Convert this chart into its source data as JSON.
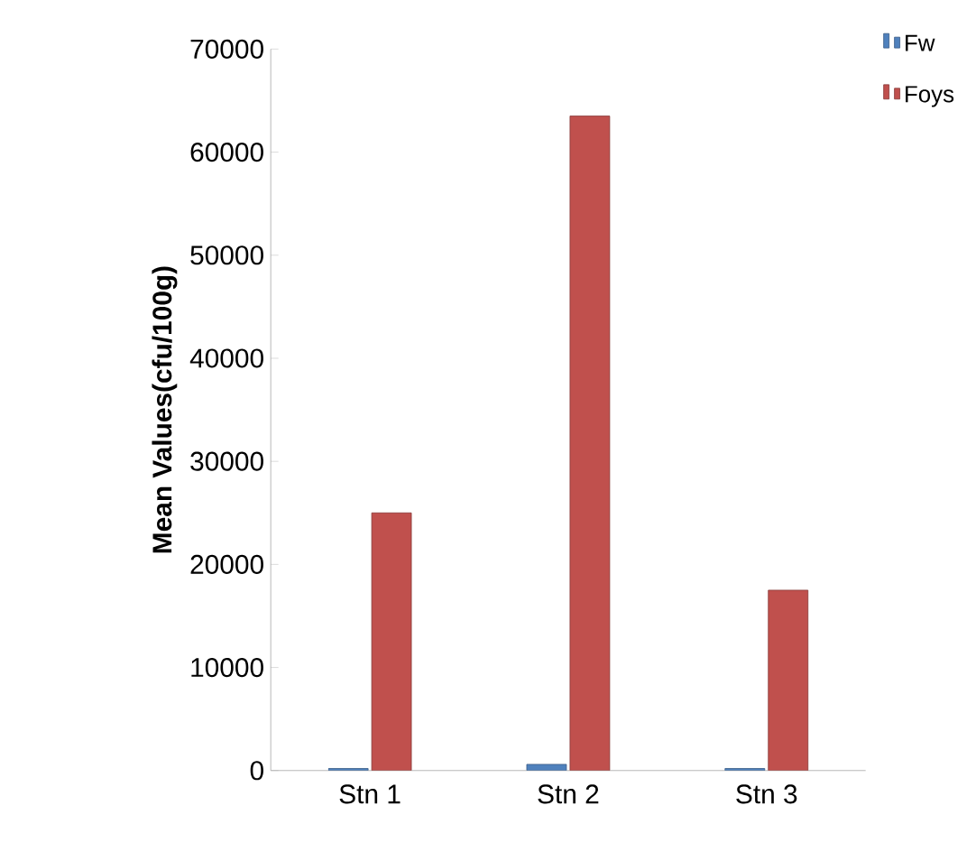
{
  "chart_data": {
    "type": "bar",
    "ylabel": "Mean Values(cfu/100g)",
    "categories": [
      "Stn 1",
      "Stn 2",
      "Stn 3"
    ],
    "series": [
      {
        "name": "Fw",
        "color": "#4f81bd",
        "values": [
          200,
          600,
          200
        ]
      },
      {
        "name": "Foys",
        "color": "#c0504d",
        "values": [
          25000,
          63500,
          17500
        ]
      }
    ],
    "ylim": [
      0,
      70000
    ],
    "yticks": [
      0,
      10000,
      20000,
      30000,
      40000,
      50000,
      60000,
      70000
    ],
    "grid": false,
    "legend": "top right"
  }
}
